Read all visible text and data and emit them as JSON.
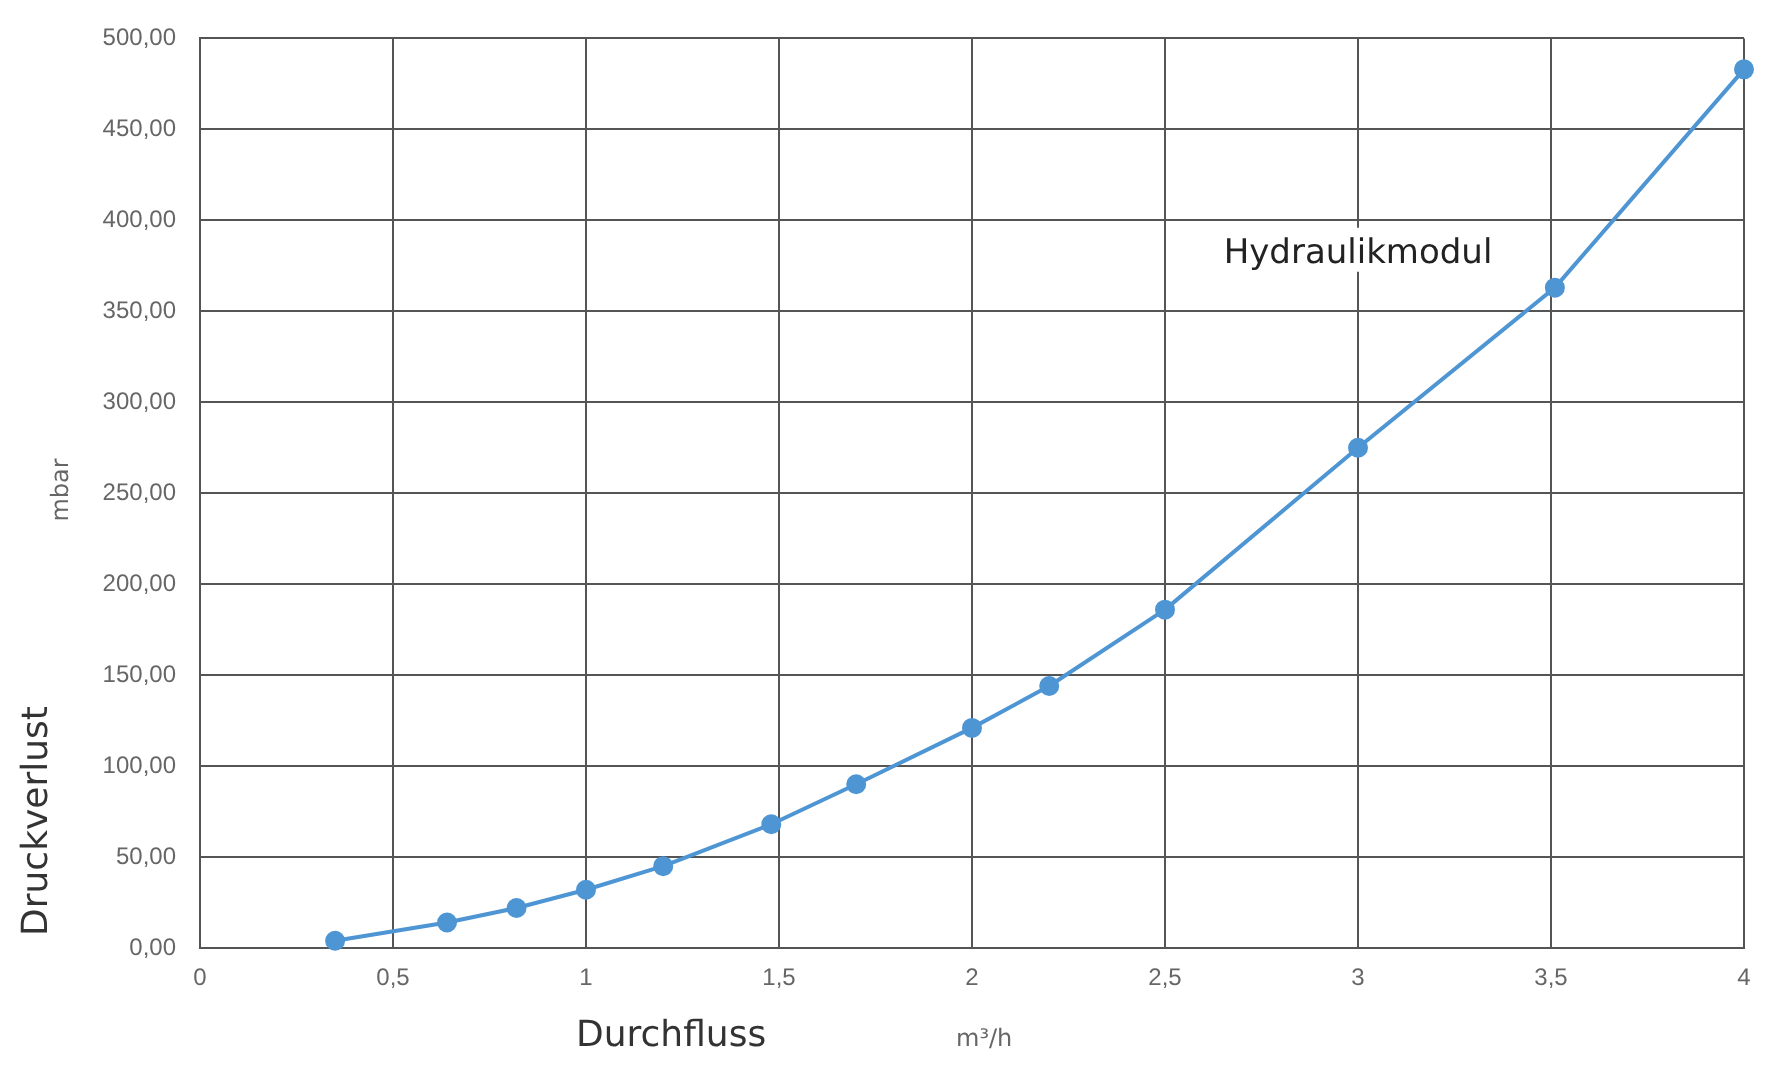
{
  "chart_data": {
    "type": "line",
    "xlabel": "Durchfluss",
    "x2label": "m³/h",
    "ylabel": "Druckverlust",
    "y2label": "mbar",
    "series": [
      {
        "name": "Hydraulikmodul",
        "color": "#4e95d4",
        "x": [
          0.35,
          0.64,
          0.82,
          1.0,
          1.2,
          1.48,
          1.7,
          2.0,
          2.2,
          2.5,
          3.0,
          3.51,
          4.0
        ],
        "values": [
          4,
          14,
          22,
          32,
          45,
          68,
          90,
          121,
          144,
          186,
          275,
          363,
          483
        ]
      }
    ],
    "xlim": [
      0,
      4
    ],
    "xticks": [
      0,
      {
        "value": 0.5,
        "label": "0,5"
      },
      1,
      {
        "value": 1.5,
        "label": "1,5"
      },
      2,
      {
        "value": 2.5,
        "label": "2,5"
      },
      3,
      {
        "value": 3.5,
        "label": "3,5"
      },
      4
    ],
    "ylim": [
      0,
      500
    ],
    "yticks": [
      {
        "value": 0,
        "label": "0,00"
      },
      {
        "value": 50,
        "label": "50,00"
      },
      {
        "value": 100,
        "label": "100,00"
      },
      {
        "value": 150,
        "label": "150,00"
      },
      {
        "value": 200,
        "label": "200,00"
      },
      {
        "value": 250,
        "label": "250,00"
      },
      {
        "value": 300,
        "label": "300,00"
      },
      {
        "value": 350,
        "label": "350,00"
      },
      {
        "value": 400,
        "label": "400,00"
      },
      {
        "value": 450,
        "label": "450,00"
      },
      {
        "value": 500,
        "label": "500,00"
      }
    ],
    "grid": true,
    "legend": false,
    "marker": "circle",
    "line_style": "solid"
  }
}
